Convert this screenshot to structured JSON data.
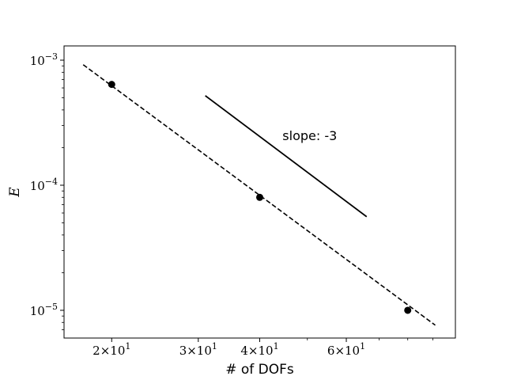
{
  "chart_data": {
    "type": "line",
    "title": "",
    "xlabel": "# of DOFs",
    "ylabel": "E",
    "xscale": "log",
    "yscale": "log",
    "xlim": [
      16.0,
      100.0
    ],
    "ylim": [
      6e-06,
      0.0013
    ],
    "grid": false,
    "x_ticks": [
      {
        "value": 20,
        "label_base": "2×10",
        "label_exp": "1"
      },
      {
        "value": 30,
        "label_base": "3×10",
        "label_exp": "1"
      },
      {
        "value": 40,
        "label_base": "4×10",
        "label_exp": "1"
      },
      {
        "value": 60,
        "label_base": "6×10",
        "label_exp": "1"
      }
    ],
    "x_minor_ticks": [
      50,
      70,
      80,
      90
    ],
    "y_ticks": [
      {
        "value": 1e-05,
        "label_base": "10",
        "label_exp": "−5"
      },
      {
        "value": 0.0001,
        "label_base": "10",
        "label_exp": "−4"
      },
      {
        "value": 0.001,
        "label_base": "10",
        "label_exp": "−3"
      }
    ],
    "series": [
      {
        "style": "markers",
        "color": "#000000",
        "points": [
          {
            "x": 20,
            "y": 0.00064
          },
          {
            "x": 40,
            "y": 8e-05
          },
          {
            "x": 80,
            "y": 1e-05
          }
        ]
      },
      {
        "style": "dashed",
        "color": "#000000",
        "points": [
          {
            "x": 17.5,
            "y": 0.00092
          },
          {
            "x": 91.0,
            "y": 7.6e-06
          }
        ]
      }
    ],
    "reference_line": {
      "color": "#000000",
      "label": "slope: -3",
      "label_at": {
        "x": 44.5,
        "y": 0.00025
      },
      "points": [
        {
          "x": 31.0,
          "y": 0.00052
        },
        {
          "x": 66.0,
          "y": 5.6e-05
        }
      ]
    }
  }
}
